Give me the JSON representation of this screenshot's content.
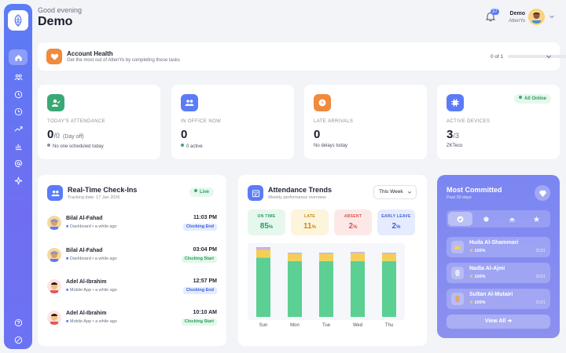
{
  "header": {
    "greeting": "Good evening",
    "title": "Demo",
    "notification_count": "27",
    "user_name": "Demo",
    "user_org": "AttenYo"
  },
  "sidebar": {
    "items": [
      "home-icon",
      "team-icon",
      "clock-icon",
      "history-icon",
      "trend-icon",
      "chart-icon",
      "at-icon",
      "sparkle-icon"
    ],
    "bottom": [
      "help-icon",
      "settings-icon"
    ]
  },
  "account_health": {
    "title": "Account Health",
    "subtitle": "Get the most out of AttenYo by completing these tasks",
    "progress": "0 of 1",
    "progress_fraction": 0
  },
  "stats": [
    {
      "label": "TODAY'S ATTENDANCE",
      "value": "0",
      "value_suffix": "/0",
      "note": "(Day off)",
      "sub": "No one scheduled today",
      "color": "#3aa876"
    },
    {
      "label": "IN OFFICE NOW",
      "value": "0",
      "sub": "0 active",
      "color": "#5b7cf6"
    },
    {
      "label": "LATE ARRIVALS",
      "value": "0",
      "sub": "No delays today",
      "color": "#f08a3c"
    },
    {
      "label": "ACTIVE DEVICES",
      "value": "3",
      "value_suffix": "/3",
      "sub": "ZKTeco",
      "pill": "All Online",
      "color": "#5b7cf6"
    }
  ],
  "checkins": {
    "title": "Real-Time Check-Ins",
    "subtitle": "Tracking date: 17 Jan 2026",
    "live_label": "Live",
    "items": [
      {
        "name": "Bilal Al-Fahad",
        "source": "Dashboard",
        "when": "a while ago",
        "time": "11:03 PM",
        "status": "Clocking End"
      },
      {
        "name": "Bilal Al-Fahad",
        "source": "Dashboard",
        "when": "a while ago",
        "time": "03:04 PM",
        "status": "Clocking Start"
      },
      {
        "name": "Adel Al-Ibrahim",
        "source": "Mobile App",
        "when": "a while ago",
        "time": "12:57 PM",
        "status": "Clocking End"
      },
      {
        "name": "Adel Al-Ibrahim",
        "source": "Mobile App",
        "when": "a while ago",
        "time": "10:10 AM",
        "status": "Clocking Start"
      }
    ]
  },
  "trends": {
    "title": "Attendance Trends",
    "subtitle": "Weekly performance overview",
    "period": "This Week",
    "metrics": [
      {
        "label": "ON TIME",
        "value": "85",
        "unit": "%",
        "color": "#2a9d5c",
        "bg": "#e6f7ee"
      },
      {
        "label": "LATE",
        "value": "11",
        "unit": "%",
        "color": "#c98a14",
        "bg": "#fdf4dc"
      },
      {
        "label": "ABSENT",
        "value": "2",
        "unit": "%",
        "color": "#d9534f",
        "bg": "#fde8e8"
      },
      {
        "label": "EARLY LEAVE",
        "value": "2",
        "unit": "%",
        "color": "#3d5fd6",
        "bg": "#e6ecff"
      }
    ]
  },
  "chart_data": {
    "type": "bar",
    "stacked": true,
    "categories": [
      "Sun",
      "Mon",
      "Tue",
      "Wed",
      "Thu"
    ],
    "series": [
      {
        "name": "ON TIME",
        "color": "#5ccf93",
        "values": [
          85,
          80,
          80,
          80,
          80
        ]
      },
      {
        "name": "LATE",
        "color": "#f5cf55",
        "values": [
          11,
          10,
          10,
          11,
          10
        ]
      },
      {
        "name": "ABSENT",
        "color": "#f3a6a6",
        "values": [
          2,
          1,
          1,
          1,
          1
        ]
      },
      {
        "name": "EARLY LEAVE",
        "color": "#a9b8f5",
        "values": [
          2,
          1,
          1,
          1,
          1
        ]
      }
    ],
    "ylim": [
      0,
      100
    ]
  },
  "committed": {
    "title": "Most Committed",
    "subtitle": "Past 30 days",
    "tabs": [
      "check-icon",
      "sun-icon",
      "sunset-icon",
      "star-icon"
    ],
    "items": [
      {
        "name": "Huda Al-Shammari",
        "pct": "100%",
        "frac": "21/21"
      },
      {
        "name": "Nadia Al-Ajmi",
        "pct": "100%",
        "frac": "21/21"
      },
      {
        "name": "Sultan Al-Mutairi",
        "pct": "100%",
        "frac": "21/21"
      }
    ],
    "view_all": "View All"
  }
}
